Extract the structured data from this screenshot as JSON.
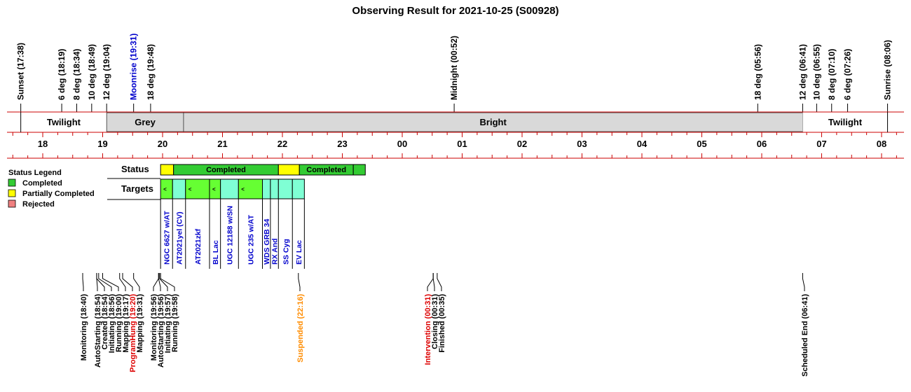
{
  "chart_data": {
    "type": "timeline",
    "title": "Observing Result for 2021-10-25 (S00928)",
    "hour_ticks": [
      "18",
      "19",
      "20",
      "21",
      "22",
      "23",
      "00",
      "01",
      "02",
      "03",
      "04",
      "05",
      "06",
      "07",
      "08"
    ],
    "events": [
      {
        "label": "Sunset (17:38)",
        "time": "17:38",
        "color": "#000000"
      },
      {
        "label": "6 deg (18:19)",
        "time": "18:19",
        "color": "#000000"
      },
      {
        "label": "8 deg (18:34)",
        "time": "18:34",
        "color": "#000000"
      },
      {
        "label": "10 deg (18:49)",
        "time": "18:49",
        "color": "#000000"
      },
      {
        "label": "12 deg (19:04)",
        "time": "19:04",
        "color": "#000000"
      },
      {
        "label": "Moonrise (19:31)",
        "time": "19:31",
        "color": "#0000cc"
      },
      {
        "label": "18 deg (19:48)",
        "time": "19:48",
        "color": "#000000"
      },
      {
        "label": "Midnight (00:52)",
        "time": "00:52",
        "color": "#000000"
      },
      {
        "label": "18 deg (05:56)",
        "time": "05:56",
        "color": "#000000"
      },
      {
        "label": "12 deg (06:41)",
        "time": "06:41",
        "color": "#000000"
      },
      {
        "label": "10 deg (06:55)",
        "time": "06:55",
        "color": "#000000"
      },
      {
        "label": "8 deg (07:10)",
        "time": "07:10",
        "color": "#000000"
      },
      {
        "label": "6 deg (07:26)",
        "time": "07:26",
        "color": "#000000"
      },
      {
        "label": "Sunrise (08:06)",
        "time": "08:06",
        "color": "#000000"
      }
    ],
    "sky_bands": [
      {
        "label": "Twilight",
        "start": "17:38",
        "end": "19:04",
        "fill": "#ffffff"
      },
      {
        "label": "Grey",
        "start": "19:04",
        "end": "20:21",
        "fill": "#d9d9d9"
      },
      {
        "label": "Bright",
        "start": "20:21",
        "end": "06:41",
        "fill": "#d9d9d9"
      },
      {
        "label": "Twilight",
        "start": "06:41",
        "end": "08:06",
        "fill": "#ffffff"
      }
    ],
    "row_labels": {
      "status": "Status",
      "targets": "Targets"
    },
    "status_blocks": [
      {
        "start": "19:58",
        "end": "20:11",
        "status": "partial",
        "label": ""
      },
      {
        "start": "20:11",
        "end": "21:56",
        "status": "completed",
        "label": "Completed"
      },
      {
        "start": "21:56",
        "end": "22:17",
        "status": "partial",
        "label": ""
      },
      {
        "start": "22:17",
        "end": "23:11",
        "status": "completed",
        "label": "Completed"
      },
      {
        "start": "23:11",
        "end": "23:23",
        "status": "completed",
        "label": ""
      }
    ],
    "targets": [
      {
        "name": "NGC 6627 w/AT",
        "start": "19:58",
        "end": "20:10",
        "fill": "#66ff33",
        "mark": "<"
      },
      {
        "name": "AT2021yel (CV)",
        "start": "20:10",
        "end": "20:23",
        "fill": "#7fffd4",
        "mark": ""
      },
      {
        "name": "AT2021zkf",
        "start": "20:23",
        "end": "20:47",
        "fill": "#66ff33",
        "mark": "<"
      },
      {
        "name": "BL Lac",
        "start": "20:47",
        "end": "20:58",
        "fill": "#66ff33",
        "mark": "<"
      },
      {
        "name": "UGC 12188 w/SN",
        "start": "20:58",
        "end": "21:16",
        "fill": "#7fffd4",
        "mark": ""
      },
      {
        "name": "UGC 235 w/AT",
        "start": "21:16",
        "end": "21:40",
        "fill": "#66ff33",
        "mark": "<"
      },
      {
        "name": "WDS GRB 34",
        "start": "21:40",
        "end": "21:48",
        "fill": "#7fffd4",
        "mark": ""
      },
      {
        "name": "RX And",
        "start": "21:48",
        "end": "21:56",
        "fill": "#7fffd4",
        "mark": ""
      },
      {
        "name": "SS Cyg",
        "start": "21:56",
        "end": "22:10",
        "fill": "#7fffd4",
        "mark": ""
      },
      {
        "name": "EV Lac",
        "start": "22:10",
        "end": "22:22",
        "fill": "#7fffd4",
        "mark": ""
      }
    ],
    "legend": {
      "title": "Status Legend",
      "items": [
        {
          "label": "Completed",
          "color": "#33cc33"
        },
        {
          "label": "Partially Completed",
          "color": "#ffff00"
        },
        {
          "label": "Rejected",
          "color": "#f08080"
        }
      ]
    },
    "log_events": [
      {
        "label": "Monitoring (18:40)",
        "time": "18:40",
        "color": "#000000"
      },
      {
        "label": "AutoStarting (18:54)",
        "time": "18:54",
        "color": "#000000"
      },
      {
        "label": "Created (18:54)",
        "time": "18:54",
        "color": "#000000"
      },
      {
        "label": "Initiating (18:56)",
        "time": "18:56",
        "color": "#000000"
      },
      {
        "label": "Running (19:00)",
        "time": "19:00",
        "color": "#000000"
      },
      {
        "label": "Mapping (19:17)",
        "time": "19:17",
        "color": "#000000"
      },
      {
        "label": "ProgramHung (19:20)",
        "time": "19:20",
        "color": "#dd0000"
      },
      {
        "label": "Mapping (19:31)",
        "time": "19:31",
        "color": "#000000"
      },
      {
        "label": "Monitoring (19:56)",
        "time": "19:56",
        "color": "#000000"
      },
      {
        "label": "AutoStarting (19:56)",
        "time": "19:56",
        "color": "#000000"
      },
      {
        "label": "Initiating (19:57)",
        "time": "19:57",
        "color": "#000000"
      },
      {
        "label": "Running (19:58)",
        "time": "19:58",
        "color": "#000000"
      },
      {
        "label": "Suspended (22:16)",
        "time": "22:16",
        "color": "#ff8c00"
      },
      {
        "label": "Intervention (00:31)",
        "time": "00:31",
        "color": "#dd0000"
      },
      {
        "label": "Closing (00:31)",
        "time": "00:31",
        "color": "#000000"
      },
      {
        "label": "Finished (00:35)",
        "time": "00:35",
        "color": "#000000"
      },
      {
        "label": "Scheduled End (06:41)",
        "time": "06:41",
        "color": "#000000"
      }
    ],
    "colors": {
      "completed": "#33cc33",
      "partial": "#ffff00",
      "axis_line": "#cc0000",
      "target_text": "#0000cc"
    }
  }
}
